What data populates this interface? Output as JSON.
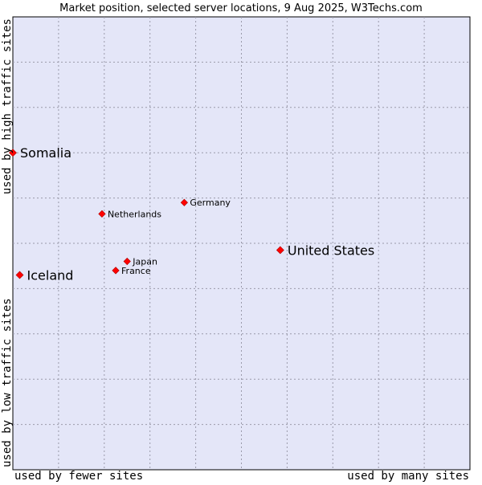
{
  "chart_data": {
    "type": "scatter",
    "title": "Market position, selected server locations, 9 Aug 2025, W3Techs.com",
    "xlabel_left": "used by fewer sites",
    "xlabel_right": "used by many sites",
    "ylabel_bottom": "used by low traffic sites",
    "ylabel_top": "used by high traffic sites",
    "xlim": [
      0,
      10
    ],
    "ylim": [
      0,
      10
    ],
    "grid": true,
    "point_color": "#ff0000",
    "plot_background": "#e4e6f8",
    "points": [
      {
        "label": "Somalia",
        "x": 0.0,
        "y": 7.0,
        "emphasis": "large"
      },
      {
        "label": "Iceland",
        "x": 0.15,
        "y": 4.3,
        "emphasis": "large"
      },
      {
        "label": "United States",
        "x": 5.85,
        "y": 4.85,
        "emphasis": "large"
      },
      {
        "label": "Germany",
        "x": 3.75,
        "y": 5.9,
        "emphasis": "small"
      },
      {
        "label": "Netherlands",
        "x": 1.95,
        "y": 5.65,
        "emphasis": "small"
      },
      {
        "label": "Japan",
        "x": 2.5,
        "y": 4.6,
        "emphasis": "small"
      },
      {
        "label": "France",
        "x": 2.25,
        "y": 4.4,
        "emphasis": "small"
      }
    ]
  }
}
